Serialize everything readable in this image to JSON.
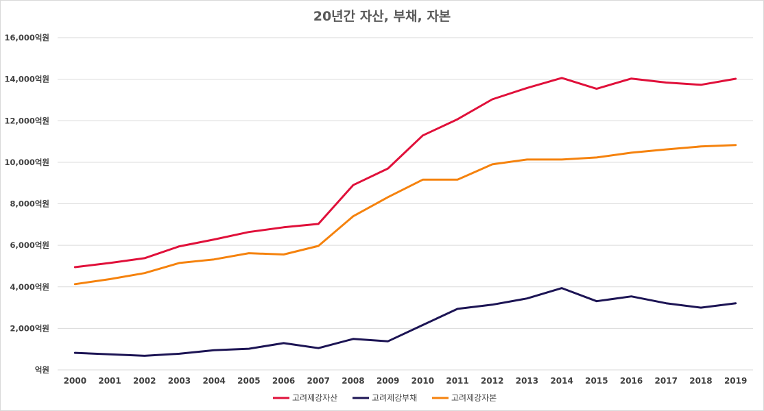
{
  "chart_data": {
    "type": "line",
    "title": "20년간 자산, 부채, 자본",
    "xlabel": "",
    "ylabel": "",
    "categories": [
      "2000",
      "2001",
      "2002",
      "2003",
      "2004",
      "2005",
      "2006",
      "2007",
      "2008",
      "2009",
      "2010",
      "2011",
      "2012",
      "2013",
      "2014",
      "2015",
      "2016",
      "2017",
      "2018",
      "2019"
    ],
    "ylim": [
      0,
      16000
    ],
    "yticks": [
      0,
      2000,
      4000,
      6000,
      8000,
      10000,
      12000,
      14000,
      16000
    ],
    "ytick_labels": [
      "억원",
      "2,000억원",
      "4,000억원",
      "6,000억원",
      "8,000억원",
      "10,000억원",
      "12,000억원",
      "14,000억원",
      "16,000억원"
    ],
    "grid": true,
    "legend_position": "bottom",
    "series": [
      {
        "name": "고려제강자산",
        "color": "#e0103a",
        "values": [
          4950,
          5150,
          5380,
          5950,
          6280,
          6640,
          6870,
          7030,
          8900,
          9700,
          11290,
          12070,
          13030,
          13580,
          14060,
          13540,
          14030,
          13840,
          13730,
          14020
        ]
      },
      {
        "name": "고려제강부채",
        "color": "#1c1454",
        "values": [
          820,
          750,
          680,
          780,
          950,
          1020,
          1290,
          1050,
          1490,
          1380,
          2160,
          2940,
          3140,
          3440,
          3940,
          3310,
          3540,
          3210,
          3000,
          3210
        ]
      },
      {
        "name": "고려제강자본",
        "color": "#f5820d",
        "values": [
          4130,
          4370,
          4660,
          5150,
          5320,
          5620,
          5560,
          5970,
          7400,
          8320,
          9160,
          9160,
          9900,
          10130,
          10130,
          10230,
          10460,
          10620,
          10760,
          10830
        ]
      }
    ]
  }
}
